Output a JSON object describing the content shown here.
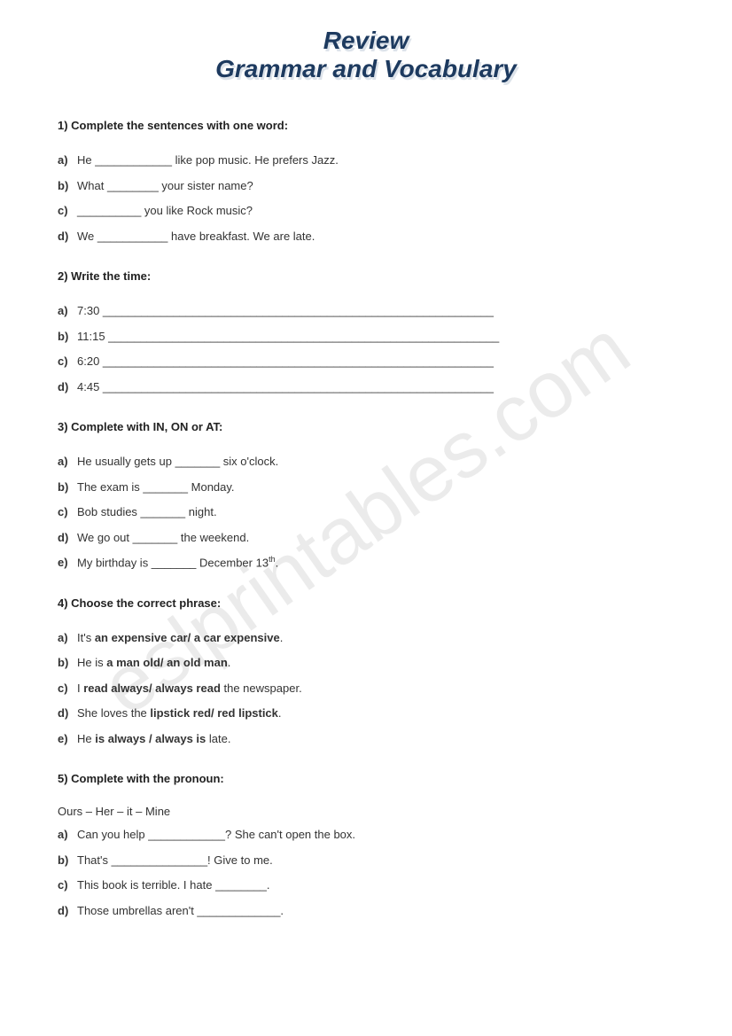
{
  "title": {
    "line1": "Review",
    "line2": "Grammar and Vocabulary"
  },
  "watermark": "eslprintables.com",
  "sections": [
    {
      "num": "1)",
      "heading": "Complete the sentences with one word:",
      "items": [
        {
          "label": "a)",
          "text": "He ____________ like pop music. He prefers Jazz."
        },
        {
          "label": "b)",
          "text": "What ________ your sister name?"
        },
        {
          "label": "c)",
          "text": "__________ you like Rock music?"
        },
        {
          "label": "d)",
          "text": "We ___________ have breakfast. We are late."
        }
      ]
    },
    {
      "num": "2)",
      "heading": "Write the time:",
      "items": [
        {
          "label": "a)",
          "text": "7:30   _____________________________________________________________"
        },
        {
          "label": "b)",
          "text": "11:15 _____________________________________________________________"
        },
        {
          "label": "c)",
          "text": "6:20   _____________________________________________________________"
        },
        {
          "label": "d)",
          "text": "4:45   _____________________________________________________________"
        }
      ]
    },
    {
      "num": "3)",
      "heading": "Complete with  IN, ON or AT:",
      "items": [
        {
          "label": "a)",
          "text": "He usually gets up _______ six o'clock."
        },
        {
          "label": "b)",
          "text": "The exam is _______ Monday."
        },
        {
          "label": "c)",
          "text": "Bob studies _______ night."
        },
        {
          "label": "d)",
          "text": "We go out _______ the weekend."
        },
        {
          "label": "e)",
          "html": "My birthday is _______ December 13<sup>th</sup>."
        }
      ]
    },
    {
      "num": "4)",
      "heading": "Choose the correct phrase:",
      "items": [
        {
          "label": "a)",
          "html": "It's <span class='bold-inline'>an expensive car/ a car expensive</span>."
        },
        {
          "label": "b)",
          "html": "He is <span class='bold-inline'>a man old/ an old man</span>."
        },
        {
          "label": "c)",
          "html": "I <span class='bold-inline'>read always/ always read</span> the newspaper."
        },
        {
          "label": "d)",
          "html": "She loves the <span class='bold-inline'>lipstick red/ red lipstick</span>."
        },
        {
          "label": "e)",
          "html": "He <span class='bold-inline'>is always / always is</span> late."
        }
      ]
    },
    {
      "num": "5)",
      "heading": "Complete with the pronoun:",
      "sublabel": "Ours – Her – it – Mine",
      "items": [
        {
          "label": "a)",
          "text": "Can you help ____________? She can't open the box."
        },
        {
          "label": "b)",
          "text": "That's _______________! Give to me."
        },
        {
          "label": "c)",
          "text": "This book is terrible. I hate ________."
        },
        {
          "label": "d)",
          "text": "Those umbrellas aren't _____________."
        }
      ]
    }
  ]
}
